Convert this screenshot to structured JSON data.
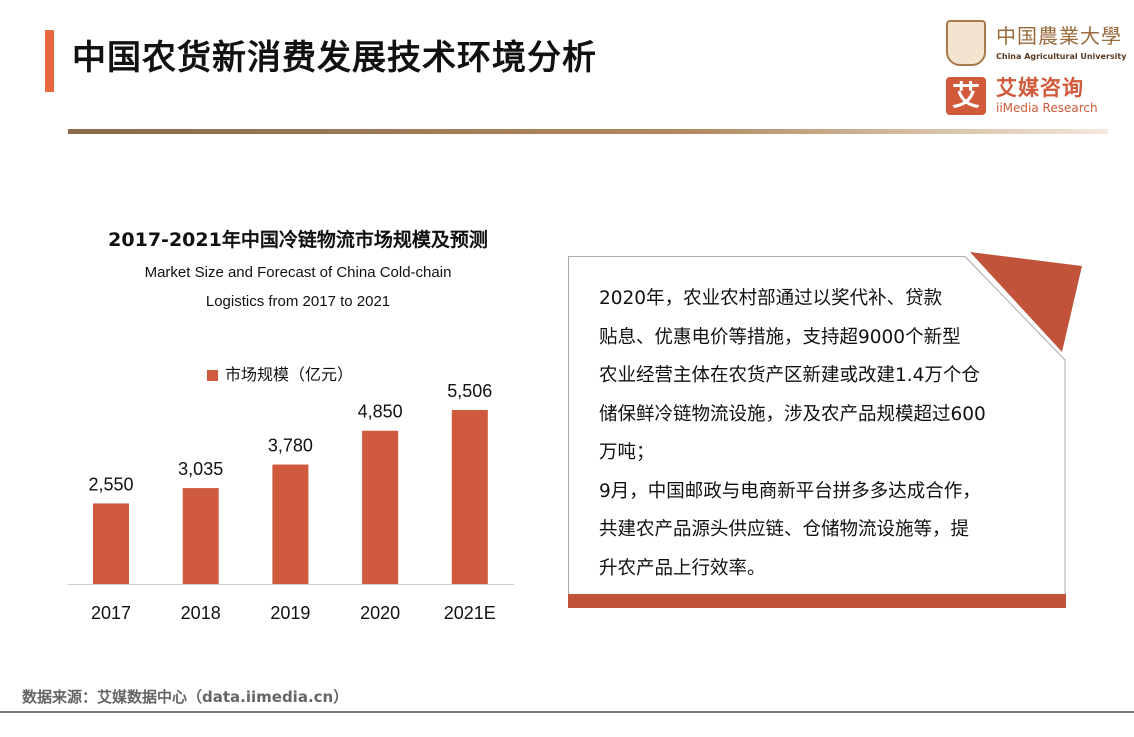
{
  "header": {
    "title": "中国农货新消费发展技术环境分析"
  },
  "logos": {
    "cau_cn": "中国農業大學",
    "cau_en": "China Agricultural University",
    "iimedia_mark": "艾",
    "iimedia_cn": "艾媒咨询",
    "iimedia_en": "iiMedia Research"
  },
  "chart_data": {
    "type": "bar",
    "title": "2017-2021年中国冷链物流市场规模及预测",
    "subtitle_lines": [
      "Market Size and Forecast of China Cold-chain",
      "Logistics from 2017 to 2021"
    ],
    "categories": [
      "2017",
      "2018",
      "2019",
      "2020",
      "2021E"
    ],
    "series": [
      {
        "name": "市场规模（亿元）",
        "values": [
          2550,
          3035,
          3780,
          4850,
          5506
        ]
      }
    ],
    "data_labels": [
      "2,550",
      "3,035",
      "3,780",
      "4,850",
      "5,506"
    ],
    "color": "#cf5a3e",
    "ylim": [
      0,
      5506
    ],
    "grid": false,
    "legend": "top-center"
  },
  "note": {
    "lines": [
      "2020年，农业农村部通过以奖代补、贷款",
      "贴息、优惠电价等措施，支持超9000个新型",
      "农业经营主体在农货产区新建或改建1.4万个仓",
      "储保鲜冷链物流设施，涉及农产品规模超过600",
      "万吨；",
      "9月，中国邮政与电商新平台拼多多达成合作，",
      "共建农产品源头供应链、仓储物流设施等，提",
      "升农产品上行效率。"
    ],
    "accent_color": "#c0533a"
  },
  "footer": {
    "source": "数据来源：艾媒数据中心（data.iimedia.cn）"
  }
}
